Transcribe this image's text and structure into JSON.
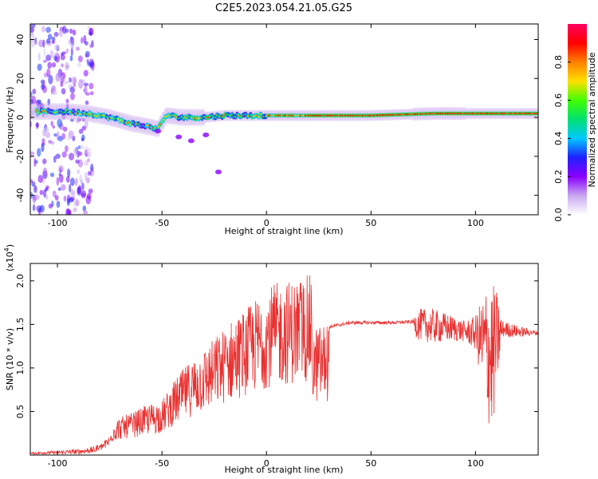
{
  "title": "C2E5.2023.054.21.05.G25",
  "chart_data": [
    {
      "type": "heatmap",
      "xlabel": "Height of straight line (km)",
      "ylabel": "Frequency (Hz)",
      "xlim": [
        -113,
        130
      ],
      "ylim": [
        -50,
        48
      ],
      "xticks": [
        -100,
        -50,
        0,
        50,
        100
      ],
      "yticks": [
        -40,
        -20,
        0,
        20,
        40
      ],
      "tick_labels_x": [
        "-100",
        "-50",
        "0",
        "50",
        "100"
      ],
      "tick_labels_y": [
        "-40",
        "-20",
        "0",
        "20",
        "40"
      ],
      "ridge": {
        "description_points": [
          [
            -110,
            3
          ],
          [
            -95,
            3
          ],
          [
            -85,
            2
          ],
          [
            -75,
            0
          ],
          [
            -65,
            -3
          ],
          [
            -55,
            -5
          ],
          [
            -52,
            -6
          ],
          [
            -48,
            1
          ],
          [
            -40,
            0
          ],
          [
            -30,
            0
          ],
          [
            -20,
            1
          ],
          [
            0,
            1
          ],
          [
            20,
            1
          ],
          [
            50,
            1
          ],
          [
            80,
            2
          ],
          [
            95,
            2
          ],
          [
            105,
            2
          ],
          [
            130,
            2
          ]
        ]
      },
      "colorbar": {
        "label": "Normalized spectral amplitude",
        "range": [
          0,
          1
        ],
        "ticks": [
          0.0,
          0.2,
          0.4,
          0.6,
          0.8
        ],
        "tick_labels": [
          "0.0",
          "0.2",
          "0.4",
          "0.6",
          "0.8"
        ],
        "colors": [
          "#ffffff",
          "#c9a8f0",
          "#8a00ff",
          "#2020ff",
          "#00c8ff",
          "#00e070",
          "#40ff00",
          "#ffe000",
          "#ff8000",
          "#ff0000",
          "#ff0060"
        ]
      }
    },
    {
      "type": "line",
      "xlabel": "Height of straight line (km)",
      "ylabel": "SNR (10 * v/v)",
      "y_multiplier_label": "(x10",
      "y_multiplier_exp": "4",
      "xlim": [
        -113,
        130
      ],
      "ylim": [
        0,
        2.2
      ],
      "xticks": [
        -100,
        -50,
        0,
        50,
        100
      ],
      "yticks": [
        0.5,
        1.0,
        1.5,
        2.0
      ],
      "tick_labels_x": [
        "-100",
        "-50",
        "0",
        "50",
        "100"
      ],
      "tick_labels_y": [
        "0.5",
        "1.0",
        "1.5",
        "2.0"
      ],
      "color": "#e83030",
      "envelope": {
        "x": [
          -113,
          -100,
          -90,
          -82,
          -78,
          -72,
          -65,
          -58,
          -50,
          -42,
          -35,
          -28,
          -22,
          -16,
          -10,
          -5,
          0,
          5,
          10,
          15,
          20,
          25,
          30,
          40,
          50,
          60,
          70,
          72,
          80,
          90,
          95,
          100,
          103,
          106,
          108,
          110,
          113,
          120,
          130
        ],
        "y": [
          0.02,
          0.03,
          0.04,
          0.06,
          0.15,
          0.28,
          0.32,
          0.38,
          0.42,
          0.62,
          0.75,
          0.85,
          0.95,
          1.05,
          1.12,
          1.2,
          1.28,
          1.32,
          1.34,
          1.36,
          1.38,
          1.42,
          1.47,
          1.52,
          1.52,
          1.52,
          1.53,
          1.5,
          1.48,
          1.45,
          1.42,
          1.4,
          1.3,
          1.2,
          1.1,
          1.3,
          1.45,
          1.42,
          1.4
        ]
      },
      "amplitude": {
        "x": [
          -113,
          -80,
          -70,
          -60,
          -50,
          -40,
          -30,
          -20,
          -10,
          0,
          10,
          20,
          25,
          30,
          70,
          72,
          80,
          95,
          100,
          103,
          106,
          108,
          110,
          113,
          130
        ],
        "a": [
          0.01,
          0.04,
          0.15,
          0.25,
          0.3,
          0.4,
          0.5,
          0.55,
          0.4,
          0.35,
          0.2,
          0.12,
          0.06,
          0.02,
          0.02,
          0.18,
          0.2,
          0.12,
          0.2,
          0.5,
          0.85,
          0.9,
          0.6,
          0.1,
          0.02
        ]
      }
    }
  ]
}
